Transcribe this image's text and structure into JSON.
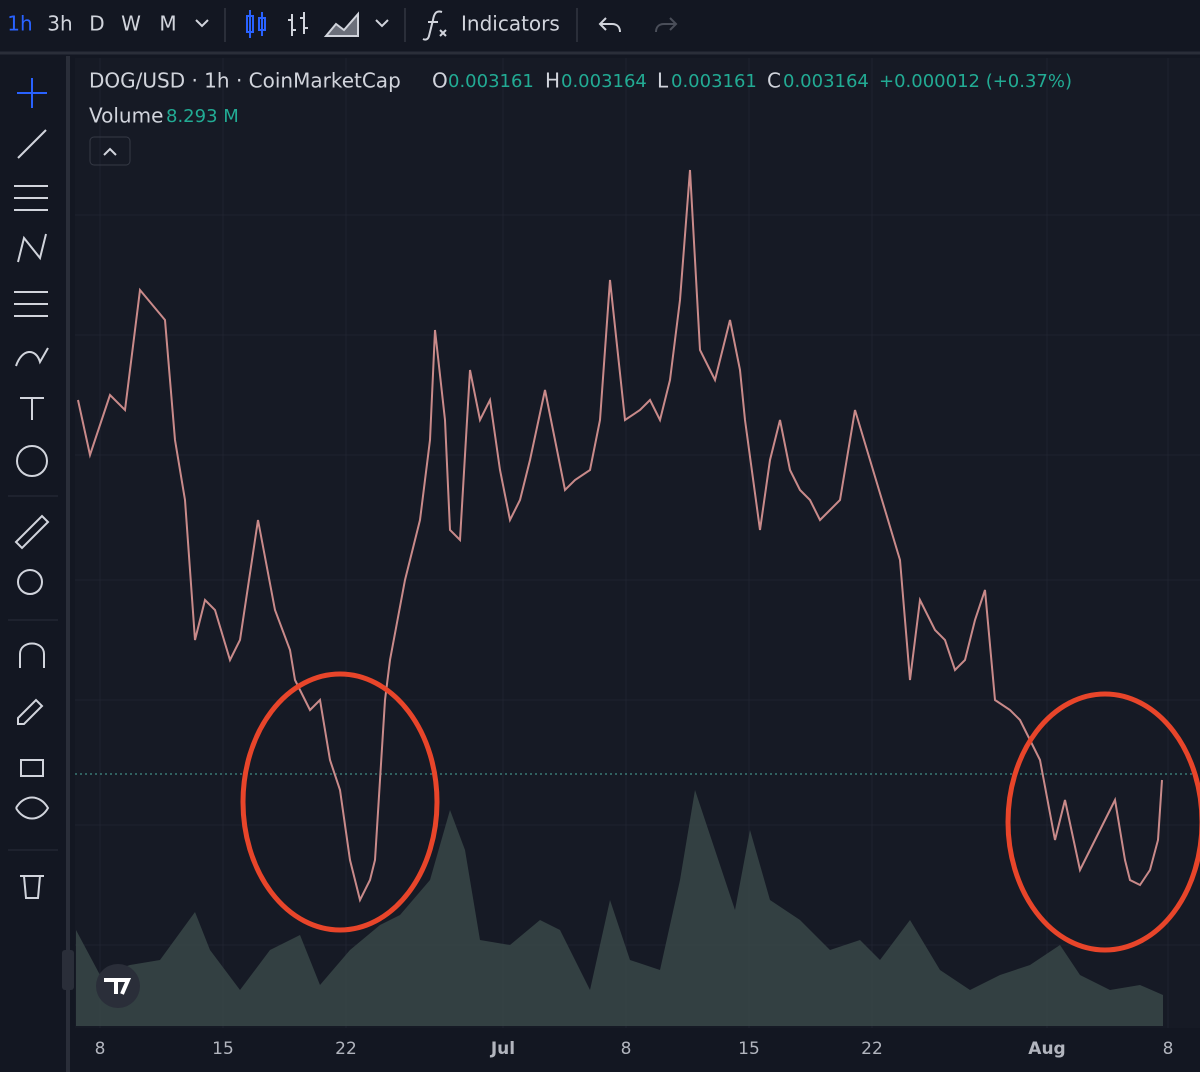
{
  "toolbar": {
    "intervals": [
      "1h",
      "3h",
      "D",
      "W",
      "M"
    ],
    "indicators": "Indicators"
  },
  "legend": {
    "symbol": "DOG/USD · 1h · CoinMarketCap",
    "open_label": "O",
    "open": "0.003161",
    "high_label": "H",
    "high": "0.003164",
    "low_label": "L",
    "low": "0.003161",
    "close_label": "C",
    "close": "0.003164",
    "change": "+0.000012 (+0.37%)",
    "volume_label": "Volume",
    "volume": "8.293 M"
  },
  "x_axis": {
    "labels": [
      "8",
      "15",
      "22",
      "Jul",
      "8",
      "15",
      "22",
      "Aug",
      "8"
    ]
  }
}
